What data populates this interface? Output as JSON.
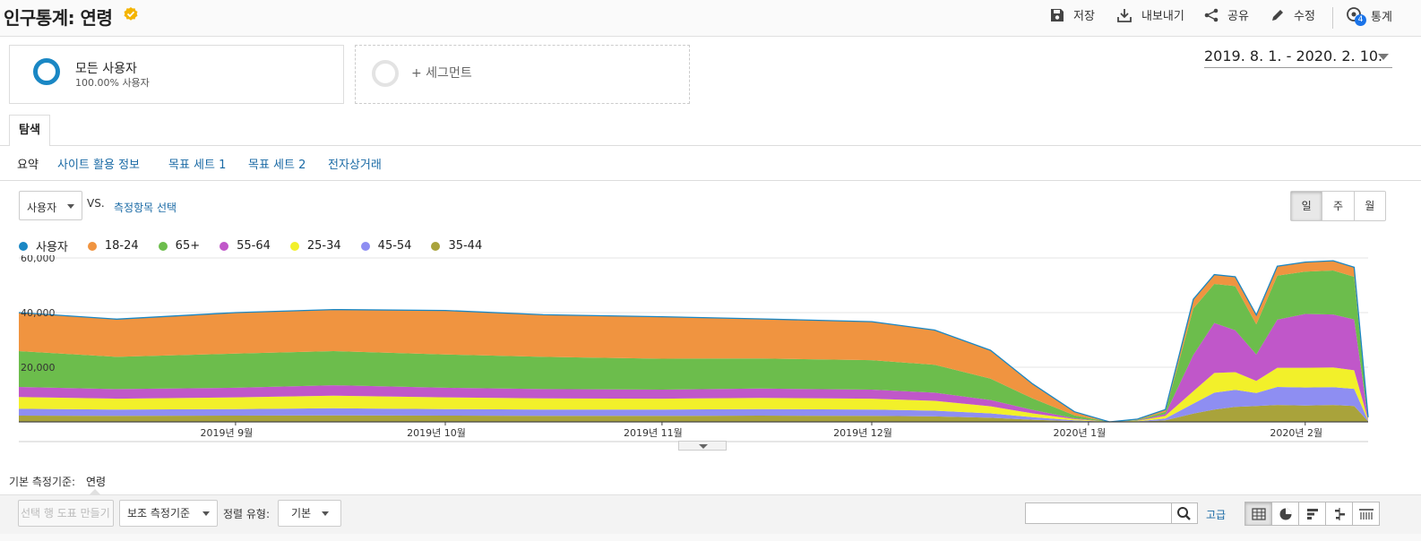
{
  "header": {
    "title": "인구통계: 연령",
    "save_label": "저장",
    "export_label": "내보내기",
    "share_label": "공유",
    "edit_label": "수정",
    "insights_label": "통계",
    "insights_badge": "4"
  },
  "segments": {
    "all_users_name": "모든 사용자",
    "all_users_pct": "100.00% 사용자",
    "add_segment_label": "+ 세그먼트"
  },
  "date_range": "2019. 8. 1. - 2020. 2. 10.",
  "tabs": {
    "explore": "탐색",
    "subtabs": [
      "요약",
      "사이트 활용 정보",
      "목표 세트 1",
      "목표 세트 2",
      "전자상거래"
    ]
  },
  "chart_controls": {
    "metric": "사용자",
    "vs": "VS.",
    "compare_link": "측정항목 선택",
    "periods": [
      "일",
      "주",
      "월"
    ]
  },
  "colors": {
    "users": "#1a87c4",
    "18-24": "#f09440",
    "65+": "#6cbd4c",
    "55-64": "#c057c9",
    "25-34": "#f2f02a",
    "45-54": "#8e8ef2",
    "35-44": "#a9a33b"
  },
  "chart_data": {
    "type": "area",
    "stacked": true,
    "y_ticks": [
      "60,000",
      "40,000",
      "20,000"
    ],
    "ylim": [
      0,
      60000
    ],
    "x_tick_labels": [
      "2019년 9월",
      "2019년 10월",
      "2019년 11월",
      "2019년 12월",
      "2020년 1월",
      "2020년 2월"
    ],
    "x_tick_dates": [
      "2019-09-01",
      "2019-10-01",
      "2019-11-01",
      "2019-12-01",
      "2020-01-01",
      "2020-02-01"
    ],
    "x_range": [
      "2019-08-01",
      "2020-02-10"
    ],
    "legend": [
      "사용자",
      "18-24",
      "65+",
      "55-64",
      "25-34",
      "45-54",
      "35-44"
    ],
    "grid": true,
    "dates": [
      "2019-08-01",
      "2019-08-15",
      "2019-09-01",
      "2019-09-15",
      "2019-10-01",
      "2019-10-15",
      "2019-11-01",
      "2019-11-15",
      "2019-12-01",
      "2019-12-10",
      "2019-12-18",
      "2019-12-24",
      "2019-12-30",
      "2020-01-04",
      "2020-01-08",
      "2020-01-12",
      "2020-01-16",
      "2020-01-19",
      "2020-01-22",
      "2020-01-25",
      "2020-01-28",
      "2020-02-01",
      "2020-02-05",
      "2020-02-08",
      "2020-02-10"
    ],
    "series": [
      {
        "name": "35-44",
        "values": [
          2300,
          2200,
          2300,
          2400,
          2300,
          2200,
          2200,
          2300,
          2200,
          2000,
          1500,
          800,
          300,
          0,
          100,
          600,
          3000,
          4500,
          5500,
          5800,
          6200,
          6000,
          6200,
          5800,
          200
        ]
      },
      {
        "name": "45-54",
        "values": [
          2500,
          2300,
          2400,
          2600,
          2400,
          2300,
          2300,
          2400,
          2300,
          2100,
          1600,
          900,
          300,
          0,
          100,
          600,
          3700,
          6200,
          6200,
          4800,
          6600,
          6600,
          6500,
          6300,
          200
        ]
      },
      {
        "name": "25-34",
        "values": [
          4300,
          4000,
          4300,
          4600,
          4300,
          4100,
          4000,
          4100,
          4000,
          3600,
          2600,
          1400,
          400,
          0,
          200,
          1000,
          4500,
          7200,
          6500,
          4400,
          7000,
          7200,
          7200,
          6800,
          300
        ]
      },
      {
        "name": "55-64",
        "values": [
          3700,
          3500,
          3500,
          3800,
          3500,
          3400,
          3300,
          3400,
          3300,
          3000,
          2300,
          1300,
          300,
          0,
          100,
          700,
          13300,
          18300,
          15300,
          9700,
          17600,
          19700,
          19400,
          18600,
          300
        ]
      },
      {
        "name": "65+",
        "values": [
          13100,
          11800,
          12500,
          12500,
          12200,
          11800,
          11300,
          11000,
          10800,
          10200,
          7800,
          4200,
          1100,
          0,
          200,
          800,
          17000,
          14300,
          16200,
          11000,
          16100,
          15500,
          16100,
          15600,
          500
        ]
      },
      {
        "name": "18-24",
        "values": [
          14100,
          13800,
          15000,
          15200,
          16100,
          15400,
          15400,
          14500,
          14100,
          12700,
          10400,
          5300,
          1300,
          0,
          300,
          800,
          3400,
          3400,
          3400,
          3400,
          3500,
          3500,
          3600,
          3500,
          200
        ]
      }
    ]
  },
  "dimension": {
    "label": "기본 측정기준:",
    "value": "연령"
  },
  "toolbar": {
    "plot_rows": "선택 행 도표 만들기",
    "secondary_dim": "보조 측정기준",
    "sort_label": "정렬 유형:",
    "sort_value": "기본",
    "advanced": "고급"
  },
  "icons": {
    "verified": "verified-badge-icon",
    "save": "save-icon",
    "export": "download-icon",
    "share": "share-icon",
    "edit": "pencil-icon",
    "insights": "insights-icon",
    "search": "search-icon",
    "views": [
      "grid-view-icon",
      "pie-view-icon",
      "bar-view-icon",
      "comparison-view-icon",
      "pivot-view-icon"
    ]
  }
}
